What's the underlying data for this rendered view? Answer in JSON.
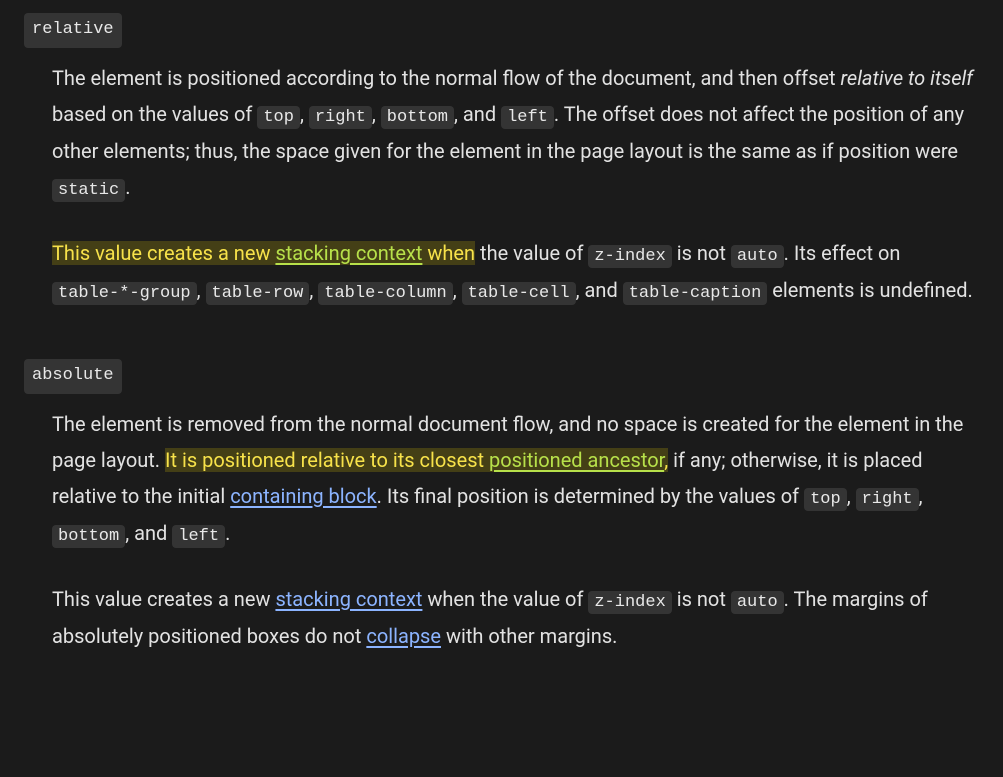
{
  "colors": {
    "background": "#1b1b1b",
    "text": "#e2e2e2",
    "code_background": "#343434",
    "code_text": "#e8e8e8",
    "link": "#8cb4ff",
    "highlight_background": "rgba(255,230,0,0.18)",
    "highlight_text": "#f7e24a",
    "highlight_link": "#b7e04a"
  },
  "typography": {
    "body_fontsize": 20,
    "code_fontsize": 17,
    "line_height": 1.8
  },
  "relative": {
    "term": "relative",
    "p1_a": "The element is positioned according to the normal flow of the document, and then offset ",
    "p1_em": "relative to itself",
    "p1_b": " based on the values of ",
    "code_top": "top",
    "p1_c": ", ",
    "code_right": "right",
    "p1_d": ", ",
    "code_bottom": "bottom",
    "p1_e": ", and ",
    "code_left": "left",
    "p1_f": ". The offset does not affect the position of any other elements; thus, the space given for the element in the page layout is the same as if position were ",
    "code_static": "static",
    "p1_g": ".",
    "p2_hl_a": "This value creates a new ",
    "p2_link_stacking": "stacking context",
    "p2_hl_b": " when",
    "p2_a": " the value of ",
    "code_zindex": "z-index",
    "p2_b": " is not ",
    "code_auto": "auto",
    "p2_c": ". Its effect on ",
    "code_tablegroup": "table-*-group",
    "p2_d": ", ",
    "code_tablerow": "table-row",
    "p2_e": ", ",
    "code_tablecolumn": "table-column",
    "p2_f": ", ",
    "code_tablecell": "table-cell",
    "p2_g": ", and ",
    "code_tablecaption": "table-caption",
    "p2_h": " elements is undefined."
  },
  "absolute": {
    "term": "absolute",
    "p1_a": "The element is removed from the normal document flow, and no space is created for the element in the page layout. ",
    "p1_hl_a": "It is positioned relative to its closest ",
    "p1_link_positioned": "positioned ancestor",
    "p1_hl_b": ",",
    "p1_b": " if any; otherwise, it is placed relative to the initial ",
    "p1_link_containing": "containing block",
    "p1_c": ". Its final position is determined by the values of ",
    "code_top": "top",
    "p1_d": ", ",
    "code_right": "right",
    "p1_e": ", ",
    "code_bottom": "bottom",
    "p1_f": ", and ",
    "code_left": "left",
    "p1_g": ".",
    "p2_a": "This value creates a new ",
    "p2_link_stacking": "stacking context",
    "p2_b": " when the value of ",
    "code_zindex": "z-index",
    "p2_c": " is not ",
    "code_auto": "auto",
    "p2_d": ". The margins of absolutely positioned boxes do not ",
    "p2_link_collapse": "collapse",
    "p2_e": " with other margins."
  }
}
